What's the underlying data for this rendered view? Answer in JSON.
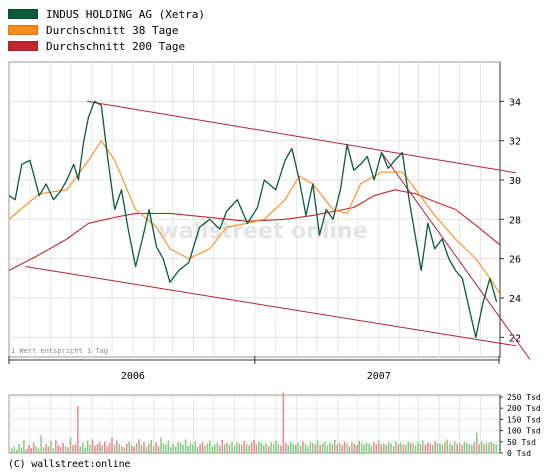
{
  "legend": {
    "stock": "INDUS HOLDING AG (Xetra)",
    "ma38": "Durchschnitt 38 Tage",
    "ma200": "Durchschnitt 200 Tage"
  },
  "footer": "(C) wallstreet:online",
  "note": "1 Wert entspricht 1 Tag",
  "watermark": "wallstreet online",
  "colors": {
    "stock": "#0b5a3a",
    "ma38": "#ff8a1c",
    "ma200": "#c2262e",
    "trend": "#b0233a",
    "vol_up": "#7fc97f",
    "vol_down": "#e8848c"
  },
  "chart_data": [
    {
      "type": "line",
      "title": "",
      "x_range": [
        "2005-07-01",
        "2007-06-30"
      ],
      "x_tick_labels": [
        "2006",
        "2007"
      ],
      "ylim": [
        21,
        36
      ],
      "y_ticks": [
        22,
        24,
        26,
        28,
        30,
        32,
        34
      ],
      "y_tick_labels": [
        "22",
        "24",
        "26",
        "28",
        "30",
        "32",
        "34"
      ],
      "grid": true,
      "legend_position": "top-left",
      "series": [
        {
          "name": "INDUS HOLDING AG (Xetra)",
          "x": [
            "2005-07-01",
            "2005-07-10",
            "2005-07-20",
            "2005-08-01",
            "2005-08-15",
            "2005-08-25",
            "2005-09-05",
            "2005-09-15",
            "2005-09-25",
            "2005-10-05",
            "2005-10-12",
            "2005-10-20",
            "2005-10-27",
            "2005-11-05",
            "2005-11-15",
            "2005-11-25",
            "2005-12-05",
            "2005-12-15",
            "2005-12-25",
            "2006-01-05",
            "2006-01-15",
            "2006-01-25",
            "2006-02-05",
            "2006-02-15",
            "2006-02-25",
            "2006-03-10",
            "2006-03-25",
            "2006-04-10",
            "2006-04-25",
            "2006-05-10",
            "2006-05-20",
            "2006-06-05",
            "2006-06-20",
            "2006-07-05",
            "2006-07-15",
            "2006-08-01",
            "2006-08-15",
            "2006-08-25",
            "2006-09-05",
            "2006-09-15",
            "2006-09-25",
            "2006-10-05",
            "2006-10-15",
            "2006-10-25",
            "2006-11-05",
            "2006-11-15",
            "2006-11-25",
            "2006-12-05",
            "2006-12-15",
            "2006-12-25",
            "2007-01-05",
            "2007-01-15",
            "2007-01-25",
            "2007-02-05",
            "2007-02-15",
            "2007-02-25",
            "2007-03-05",
            "2007-03-15",
            "2007-03-25",
            "2007-04-05",
            "2007-04-15",
            "2007-04-25",
            "2007-05-05",
            "2007-05-15",
            "2007-05-25",
            "2007-06-05",
            "2007-06-15",
            "2007-06-25"
          ],
          "values": [
            29.2,
            29.0,
            30.8,
            31.0,
            29.2,
            29.8,
            29.0,
            29.4,
            30.0,
            30.8,
            30.0,
            32.0,
            33.2,
            34.0,
            33.8,
            31.0,
            28.5,
            29.5,
            27.5,
            25.6,
            27.0,
            28.5,
            26.6,
            26.0,
            24.8,
            25.4,
            25.8,
            27.6,
            28.0,
            27.5,
            28.4,
            29.0,
            27.8,
            28.6,
            30.0,
            29.5,
            31.0,
            31.6,
            30.0,
            28.2,
            29.8,
            27.2,
            28.5,
            28.0,
            29.5,
            31.8,
            30.5,
            30.8,
            31.2,
            30.0,
            31.4,
            30.6,
            31.0,
            31.4,
            29.0,
            27.0,
            25.4,
            27.8,
            26.5,
            27.0,
            26.0,
            25.4,
            25.0,
            23.5,
            22.0,
            23.8,
            25.0,
            23.8
          ]
        },
        {
          "name": "Durchschnitt 38 Tage",
          "x": [
            "2005-07-01",
            "2005-08-15",
            "2005-09-25",
            "2005-10-27",
            "2005-11-15",
            "2005-12-05",
            "2006-01-05",
            "2006-02-05",
            "2006-02-25",
            "2006-03-25",
            "2006-04-25",
            "2006-05-20",
            "2006-06-20",
            "2006-07-15",
            "2006-08-15",
            "2006-09-05",
            "2006-09-25",
            "2006-10-25",
            "2006-11-15",
            "2006-12-05",
            "2007-01-05",
            "2007-02-05",
            "2007-02-25",
            "2007-03-25",
            "2007-04-25",
            "2007-05-25",
            "2007-06-15",
            "2007-06-30"
          ],
          "values": [
            28.0,
            29.3,
            29.5,
            31.0,
            32.0,
            31.0,
            28.5,
            27.6,
            26.5,
            26.0,
            26.5,
            27.6,
            27.8,
            28.0,
            29.0,
            30.2,
            29.8,
            28.5,
            28.3,
            29.8,
            30.4,
            30.4,
            29.5,
            28.2,
            27.0,
            26.0,
            25.0,
            24.2
          ]
        },
        {
          "name": "Durchschnitt 200 Tage",
          "x": [
            "2005-07-01",
            "2005-08-15",
            "2005-09-25",
            "2005-10-27",
            "2005-12-05",
            "2006-01-05",
            "2006-02-25",
            "2006-04-25",
            "2006-06-20",
            "2006-08-15",
            "2006-09-25",
            "2006-10-25",
            "2006-11-25",
            "2006-12-25",
            "2007-01-25",
            "2007-02-25",
            "2007-03-25",
            "2007-04-25",
            "2007-05-25",
            "2007-06-30"
          ],
          "values": [
            25.4,
            26.2,
            27.0,
            27.8,
            28.1,
            28.3,
            28.3,
            28.1,
            27.9,
            28.0,
            28.2,
            28.4,
            28.6,
            29.2,
            29.5,
            29.3,
            28.9,
            28.5,
            27.7,
            26.7
          ]
        }
      ],
      "trendlines": [
        {
          "from": {
            "x": "2005-10-25",
            "y": 34.0
          },
          "to": {
            "x": "2007-06-30",
            "y": 30.5
          }
        },
        {
          "from": {
            "x": "2005-07-25",
            "y": 25.6
          },
          "to": {
            "x": "2007-06-30",
            "y": 21.7
          }
        },
        {
          "from": {
            "x": "2007-01-05",
            "y": 31.4
          },
          "to": {
            "x": "2007-06-30",
            "y": 23.0
          }
        }
      ]
    },
    {
      "type": "bar",
      "title": "",
      "ylabel": "",
      "ylim": [
        0,
        250
      ],
      "y_ticks": [
        0,
        50,
        100,
        150,
        200,
        250
      ],
      "y_tick_labels": [
        "0 Tsd",
        "50 Tsd",
        "100 Tsd",
        "150 Tsd",
        "200 Tsd",
        "250 Tsd"
      ],
      "grid": true,
      "note": "daily trading volume (approximate, read off chart)",
      "values": [
        20,
        30,
        15,
        40,
        25,
        60,
        18,
        35,
        22,
        45,
        30,
        20,
        80,
        25,
        40,
        30,
        55,
        20,
        60,
        35,
        28,
        45,
        30,
        25,
        70,
        35,
        40,
        210,
        30,
        45,
        25,
        55,
        38,
        60,
        32,
        40,
        48,
        36,
        52,
        30,
        44,
        70,
        38,
        56,
        42,
        30,
        25,
        40,
        50,
        35,
        28,
        44,
        62,
        36,
        48,
        30,
        40,
        58,
        34,
        46,
        30,
        70,
        42,
        38,
        55,
        26,
        40,
        30,
        50,
        44,
        36,
        60,
        32,
        45,
        38,
        52,
        28,
        40,
        48,
        34,
        42,
        56,
        30,
        38,
        46,
        32,
        58,
        40,
        44,
        36,
        50,
        30,
        48,
        42,
        36,
        55,
        40,
        34,
        46,
        60,
        38,
        50,
        44,
        36,
        42,
        30,
        48,
        38,
        56,
        40,
        34,
        270,
        44,
        36,
        50,
        42,
        38,
        46,
        34,
        52,
        40,
        30,
        48,
        44,
        38,
        56,
        36,
        42,
        50,
        34,
        46,
        40,
        58,
        38,
        44,
        36,
        50,
        42,
        30,
        48,
        40,
        36,
        54,
        44,
        38,
        46,
        42,
        34,
        50,
        40,
        56,
        38,
        44,
        36,
        48,
        42,
        30,
        52,
        40,
        46,
        38,
        36,
        50,
        44,
        42,
        34,
        48,
        40,
        56,
        38,
        46,
        42,
        36,
        52,
        44,
        40,
        38,
        48,
        60,
        44,
        36,
        52,
        40,
        46,
        38,
        50,
        44,
        42,
        36,
        48,
        90,
        40,
        52,
        38,
        44,
        46,
        50,
        42,
        40
      ]
    }
  ]
}
